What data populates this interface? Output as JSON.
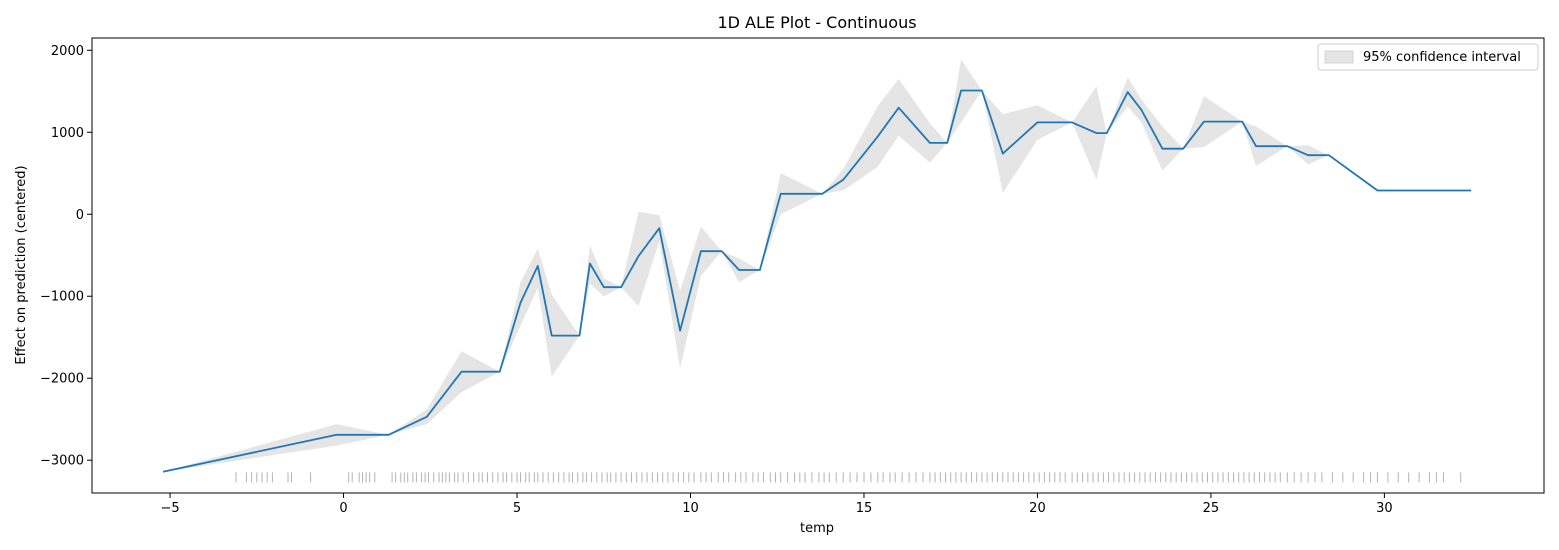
{
  "chart_data": {
    "type": "line",
    "title": "1D ALE Plot - Continuous",
    "xlabel": "temp",
    "ylabel": "Effect on prediction (centered)",
    "xlim": [
      -7.25,
      34.6
    ],
    "ylim": [
      -3400,
      2150
    ],
    "xticks": [
      -5,
      0,
      5,
      10,
      15,
      20,
      25,
      30
    ],
    "yticks": [
      -3000,
      -2000,
      -1000,
      0,
      1000,
      2000
    ],
    "xtick_labels": [
      "−5",
      "0",
      "5",
      "10",
      "15",
      "20",
      "25",
      "30"
    ],
    "ytick_labels": [
      "−3000",
      "−2000",
      "−1000",
      "0",
      "1000",
      "2000"
    ],
    "grid": false,
    "legend": {
      "position": "top-right",
      "entries": [
        "95% confidence interval"
      ]
    },
    "colors": {
      "line": "#1f77b4",
      "band": "#cccccc",
      "rug": "#000000"
    },
    "series": [
      {
        "x": [
          -5.2,
          -0.2,
          1.3,
          2.4,
          3.4,
          4.5,
          5.1,
          5.6,
          6.0,
          6.8,
          7.1,
          7.5,
          8.0,
          8.5,
          9.1,
          9.7,
          10.3,
          10.9,
          11.4,
          12.0,
          12.6,
          13.8,
          14.4,
          15.4,
          16.0,
          16.9,
          17.4,
          17.8,
          18.4,
          19.0,
          20.0,
          21.0,
          21.7,
          22.0,
          22.6,
          23.0,
          23.6,
          24.2,
          24.8,
          25.9,
          26.3,
          27.2,
          27.8,
          28.4,
          29.8,
          32.5
        ],
        "y": [
          -3140,
          -2690,
          -2690,
          -2470,
          -1920,
          -1920,
          -1080,
          -630,
          -1480,
          -1480,
          -600,
          -890,
          -890,
          -510,
          -170,
          -1420,
          -450,
          -450,
          -680,
          -680,
          250,
          250,
          420,
          950,
          1300,
          870,
          870,
          1510,
          1510,
          740,
          1120,
          1120,
          990,
          990,
          1490,
          1270,
          800,
          800,
          1130,
          1130,
          830,
          830,
          720,
          720,
          290,
          290
        ],
        "ci_lower": [
          -3140,
          -2820,
          -2690,
          -2560,
          -2170,
          -1920,
          -1360,
          -900,
          -1980,
          -1480,
          -850,
          -1000,
          -890,
          -1120,
          -330,
          -1880,
          -750,
          -450,
          -830,
          -680,
          0,
          250,
          290,
          580,
          960,
          630,
          870,
          1120,
          1510,
          260,
          910,
          1120,
          420,
          990,
          1310,
          1120,
          530,
          800,
          820,
          1130,
          590,
          830,
          610,
          720,
          290,
          290
        ],
        "ci_upper": [
          -3140,
          -2560,
          -2690,
          -2380,
          -1670,
          -1920,
          -830,
          -420,
          -980,
          -1480,
          -380,
          -780,
          -890,
          30,
          -10,
          -930,
          -150,
          -450,
          -540,
          -680,
          500,
          250,
          550,
          1320,
          1650,
          1110,
          870,
          1890,
          1510,
          1220,
          1330,
          1120,
          1560,
          990,
          1670,
          1400,
          1070,
          800,
          1440,
          1130,
          1070,
          830,
          840,
          720,
          290,
          290
        ]
      }
    ],
    "rug_x": [
      -3.1,
      -2.8,
      -2.65,
      -2.5,
      -2.35,
      -2.2,
      -2.05,
      -1.6,
      -1.5,
      -0.95,
      0.15,
      0.25,
      0.45,
      0.55,
      0.65,
      0.75,
      0.9,
      1.4,
      1.5,
      1.65,
      1.75,
      1.85,
      2.0,
      2.1,
      2.25,
      2.35,
      2.45,
      2.6,
      2.75,
      2.85,
      2.95,
      3.05,
      3.2,
      3.3,
      3.45,
      3.6,
      3.75,
      3.9,
      4.0,
      4.15,
      4.3,
      4.45,
      4.6,
      4.7,
      4.85,
      5.0,
      5.1,
      5.25,
      5.35,
      5.5,
      5.6,
      5.75,
      5.9,
      6.05,
      6.2,
      6.35,
      6.5,
      6.6,
      6.75,
      6.9,
      7.0,
      7.15,
      7.3,
      7.45,
      7.6,
      7.7,
      7.85,
      8.0,
      8.15,
      8.3,
      8.45,
      8.6,
      8.75,
      8.9,
      9.05,
      9.2,
      9.35,
      9.5,
      9.65,
      9.8,
      9.95,
      10.1,
      10.3,
      10.45,
      10.6,
      10.8,
      10.95,
      11.1,
      11.3,
      11.45,
      11.6,
      11.8,
      11.95,
      12.1,
      12.3,
      12.45,
      12.6,
      12.8,
      13.0,
      13.15,
      13.3,
      13.5,
      13.7,
      13.85,
      14.0,
      14.2,
      14.4,
      14.6,
      14.8,
      15.0,
      15.2,
      15.4,
      15.55,
      15.75,
      15.9,
      16.1,
      16.3,
      16.5,
      16.7,
      16.9,
      17.05,
      17.2,
      17.35,
      17.5,
      17.65,
      17.8,
      17.95,
      18.1,
      18.25,
      18.4,
      18.55,
      18.7,
      18.85,
      19.0,
      19.15,
      19.3,
      19.45,
      19.6,
      19.75,
      19.9,
      20.05,
      20.2,
      20.35,
      20.5,
      20.65,
      20.8,
      21.0,
      21.15,
      21.3,
      21.45,
      21.6,
      21.75,
      21.9,
      22.05,
      22.2,
      22.35,
      22.5,
      22.65,
      22.8,
      22.95,
      23.1,
      23.25,
      23.4,
      23.55,
      23.7,
      23.85,
      24.0,
      24.15,
      24.3,
      24.45,
      24.6,
      24.75,
      24.9,
      25.05,
      25.2,
      25.35,
      25.5,
      25.65,
      25.8,
      25.95,
      26.1,
      26.25,
      26.4,
      26.55,
      26.7,
      26.85,
      27.0,
      27.2,
      27.4,
      27.6,
      27.8,
      28.0,
      28.2,
      28.5,
      28.8,
      29.1,
      29.4,
      29.6,
      29.8,
      30.1,
      30.4,
      30.7,
      31.0,
      31.3,
      31.5,
      31.7,
      32.2
    ],
    "rug_y": -3210
  }
}
